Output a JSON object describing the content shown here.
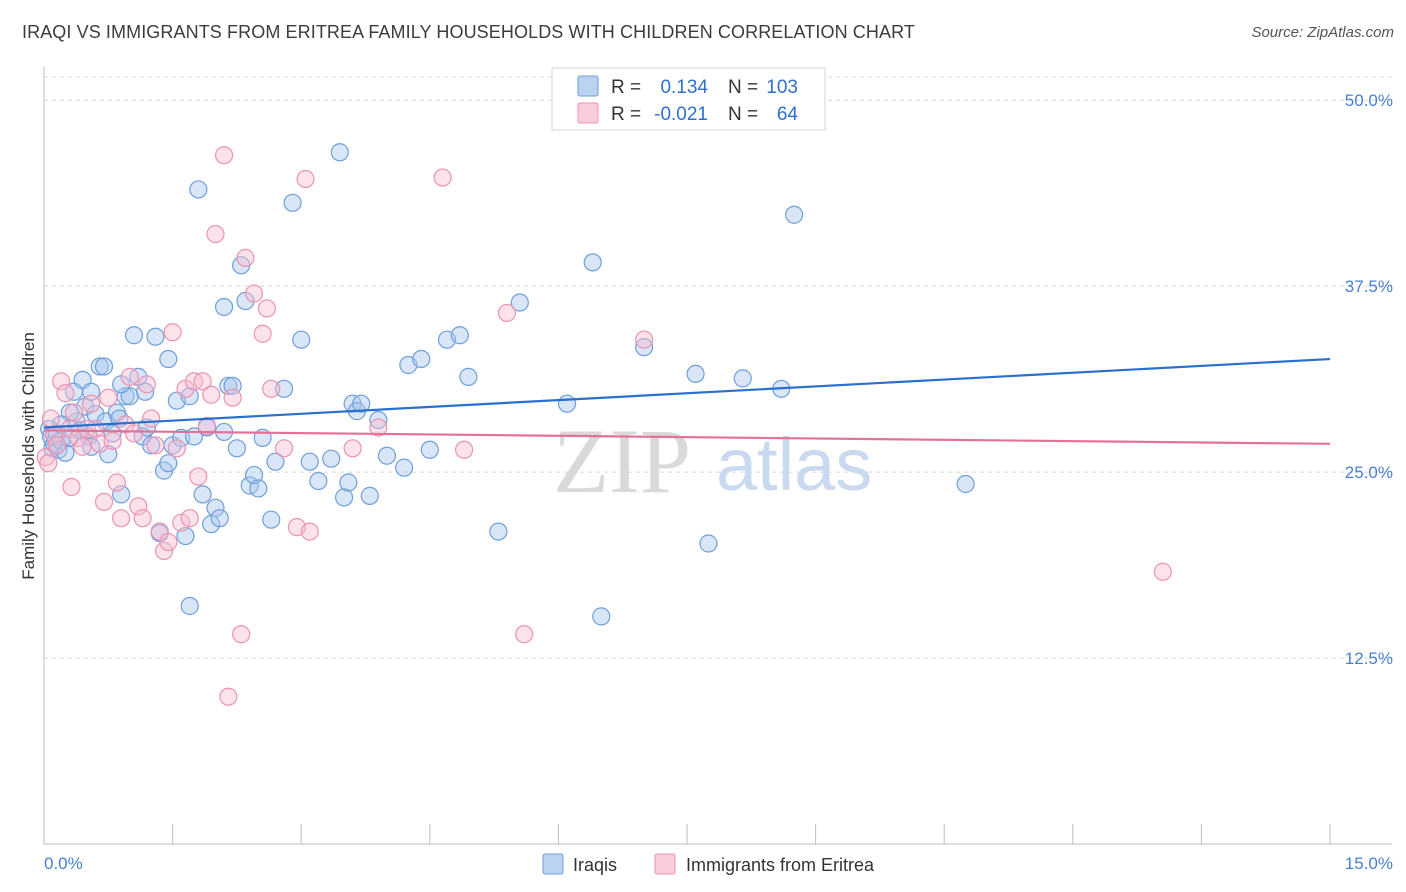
{
  "title": "IRAQI VS IMMIGRANTS FROM ERITREA FAMILY HOUSEHOLDS WITH CHILDREN CORRELATION CHART",
  "source": "Source: ZipAtlas.com",
  "watermark": {
    "part1": "ZIP",
    "part2": "atlas"
  },
  "colors": {
    "iraqi_fill": "#a9c8ee",
    "iraqi_stroke": "#6f9fdc",
    "iraqi_line": "#2b6fcf",
    "eritrea_fill": "#f6bfd2",
    "eritrea_stroke": "#ec93b1",
    "eritrea_line": "#e4719a",
    "grid": "#d8d8d8",
    "tick_text": "#4a7fcf"
  },
  "legend": {
    "r_label": "R =",
    "n_label": "N =",
    "rows": [
      {
        "r": "0.134",
        "n": "103"
      },
      {
        "r": "-0.021",
        "n": "64"
      }
    ]
  },
  "chart_data": {
    "type": "scatter",
    "title": "IRAQI VS IMMIGRANTS FROM ERITREA FAMILY HOUSEHOLDS WITH CHILDREN CORRELATION CHART",
    "xlabel": "",
    "ylabel": "Family Households with Children",
    "xlim": [
      0,
      15
    ],
    "ylim": [
      0,
      52.5
    ],
    "x_tick_labels": [
      "0.0%",
      "15.0%"
    ],
    "y_ticks": [
      12.5,
      25.0,
      37.5,
      50.0
    ],
    "y_tick_labels": [
      "12.5%",
      "25.0%",
      "37.5%",
      "50.0%"
    ],
    "grid": "horizontal dashed",
    "legend_position": "top-center",
    "series": [
      {
        "name": "Iraqis",
        "r": 0.134,
        "n": 103,
        "trend": {
          "x": [
            0,
            15
          ],
          "y": [
            28.0,
            32.6
          ]
        },
        "points": [
          [
            0.06,
            27.9
          ],
          [
            0.08,
            27.4
          ],
          [
            0.1,
            26.6
          ],
          [
            0.12,
            26.9
          ],
          [
            0.15,
            27.6
          ],
          [
            0.17,
            26.5
          ],
          [
            0.2,
            27.1
          ],
          [
            0.25,
            26.3
          ],
          [
            0.3,
            27.3
          ],
          [
            0.35,
            30.4
          ],
          [
            0.38,
            28.4
          ],
          [
            0.42,
            27.8
          ],
          [
            0.45,
            31.2
          ],
          [
            0.48,
            29.4
          ],
          [
            0.52,
            27.4
          ],
          [
            0.55,
            30.4
          ],
          [
            0.6,
            28.9
          ],
          [
            0.65,
            32.1
          ],
          [
            0.7,
            32.1
          ],
          [
            0.72,
            28.4
          ],
          [
            0.75,
            26.2
          ],
          [
            0.8,
            27.6
          ],
          [
            0.85,
            29.0
          ],
          [
            0.88,
            28.6
          ],
          [
            0.9,
            23.5
          ],
          [
            0.95,
            30.1
          ],
          [
            1.0,
            30.1
          ],
          [
            1.05,
            34.2
          ],
          [
            1.1,
            31.4
          ],
          [
            1.15,
            27.4
          ],
          [
            1.18,
            30.4
          ],
          [
            1.2,
            28.0
          ],
          [
            1.25,
            26.8
          ],
          [
            1.3,
            34.1
          ],
          [
            1.35,
            20.9
          ],
          [
            1.4,
            25.1
          ],
          [
            1.45,
            32.6
          ],
          [
            1.5,
            26.8
          ],
          [
            1.55,
            29.8
          ],
          [
            1.6,
            27.3
          ],
          [
            1.65,
            20.7
          ],
          [
            1.7,
            30.1
          ],
          [
            1.75,
            27.4
          ],
          [
            1.8,
            44.0
          ],
          [
            1.85,
            23.5
          ],
          [
            1.9,
            28.0
          ],
          [
            1.95,
            21.5
          ],
          [
            2.0,
            22.6
          ],
          [
            2.05,
            21.9
          ],
          [
            2.1,
            36.1
          ],
          [
            2.15,
            30.8
          ],
          [
            2.2,
            30.8
          ],
          [
            2.25,
            26.6
          ],
          [
            2.3,
            38.9
          ],
          [
            2.35,
            36.5
          ],
          [
            2.4,
            24.1
          ],
          [
            2.45,
            24.8
          ],
          [
            2.5,
            23.9
          ],
          [
            2.55,
            27.3
          ],
          [
            2.65,
            21.8
          ],
          [
            2.7,
            25.7
          ],
          [
            2.8,
            30.6
          ],
          [
            2.9,
            43.1
          ],
          [
            3.0,
            33.9
          ],
          [
            3.1,
            25.7
          ],
          [
            3.2,
            24.4
          ],
          [
            3.35,
            25.9
          ],
          [
            3.45,
            46.5
          ],
          [
            3.5,
            23.3
          ],
          [
            3.55,
            24.3
          ],
          [
            3.6,
            29.6
          ],
          [
            3.65,
            29.1
          ],
          [
            3.7,
            29.6
          ],
          [
            3.8,
            23.4
          ],
          [
            4.0,
            26.1
          ],
          [
            4.2,
            25.3
          ],
          [
            4.25,
            32.2
          ],
          [
            4.4,
            32.6
          ],
          [
            4.5,
            26.5
          ],
          [
            4.7,
            33.9
          ],
          [
            4.85,
            34.2
          ],
          [
            4.95,
            31.4
          ],
          [
            5.3,
            21.0
          ],
          [
            5.55,
            36.4
          ],
          [
            6.1,
            29.6
          ],
          [
            6.4,
            39.1
          ],
          [
            6.5,
            15.3
          ],
          [
            7.0,
            33.4
          ],
          [
            7.6,
            31.6
          ],
          [
            7.75,
            20.2
          ],
          [
            8.15,
            31.3
          ],
          [
            8.6,
            30.6
          ],
          [
            8.75,
            42.3
          ],
          [
            10.75,
            24.2
          ],
          [
            0.9,
            30.9
          ],
          [
            1.7,
            16.0
          ],
          [
            0.55,
            26.7
          ],
          [
            0.3,
            29.0
          ],
          [
            2.1,
            27.7
          ],
          [
            1.45,
            25.6
          ],
          [
            3.9,
            28.5
          ],
          [
            0.2,
            28.2
          ]
        ]
      },
      {
        "name": "Immigrants from Eritrea",
        "r": -0.021,
        "n": 64,
        "trend": {
          "x": [
            0,
            15
          ],
          "y": [
            27.8,
            26.9
          ]
        },
        "points": [
          [
            0.02,
            26.0
          ],
          [
            0.05,
            25.6
          ],
          [
            0.08,
            28.6
          ],
          [
            0.12,
            27.5
          ],
          [
            0.15,
            26.8
          ],
          [
            0.2,
            31.1
          ],
          [
            0.25,
            30.3
          ],
          [
            0.3,
            27.9
          ],
          [
            0.32,
            24.0
          ],
          [
            0.35,
            29.0
          ],
          [
            0.4,
            27.3
          ],
          [
            0.45,
            26.7
          ],
          [
            0.5,
            27.9
          ],
          [
            0.55,
            29.6
          ],
          [
            0.6,
            27.9
          ],
          [
            0.65,
            26.9
          ],
          [
            0.7,
            23.0
          ],
          [
            0.75,
            30.0
          ],
          [
            0.8,
            27.1
          ],
          [
            0.85,
            24.3
          ],
          [
            0.9,
            21.9
          ],
          [
            0.95,
            28.2
          ],
          [
            1.0,
            31.4
          ],
          [
            1.05,
            27.6
          ],
          [
            1.1,
            22.7
          ],
          [
            1.15,
            21.9
          ],
          [
            1.2,
            30.9
          ],
          [
            1.25,
            28.6
          ],
          [
            1.3,
            26.8
          ],
          [
            1.35,
            21.0
          ],
          [
            1.4,
            19.7
          ],
          [
            1.45,
            20.3
          ],
          [
            1.5,
            34.4
          ],
          [
            1.55,
            26.6
          ],
          [
            1.6,
            21.6
          ],
          [
            1.65,
            30.6
          ],
          [
            1.7,
            21.9
          ],
          [
            1.75,
            31.1
          ],
          [
            1.8,
            24.7
          ],
          [
            1.85,
            31.1
          ],
          [
            1.9,
            28.1
          ],
          [
            1.95,
            30.2
          ],
          [
            2.0,
            41.0
          ],
          [
            2.1,
            46.3
          ],
          [
            2.15,
            9.9
          ],
          [
            2.2,
            30.0
          ],
          [
            2.3,
            14.1
          ],
          [
            2.35,
            39.4
          ],
          [
            2.45,
            37.0
          ],
          [
            2.55,
            34.3
          ],
          [
            2.6,
            36.0
          ],
          [
            2.65,
            30.6
          ],
          [
            2.8,
            26.6
          ],
          [
            2.95,
            21.3
          ],
          [
            3.05,
            44.7
          ],
          [
            3.1,
            21.0
          ],
          [
            3.6,
            26.6
          ],
          [
            3.9,
            28.0
          ],
          [
            4.65,
            44.8
          ],
          [
            4.9,
            26.5
          ],
          [
            5.4,
            35.7
          ],
          [
            5.6,
            14.1
          ],
          [
            7.0,
            33.9
          ],
          [
            13.05,
            18.3
          ]
        ]
      }
    ]
  },
  "bottom_legend": [
    "Iraqis",
    "Immigrants from Eritrea"
  ]
}
